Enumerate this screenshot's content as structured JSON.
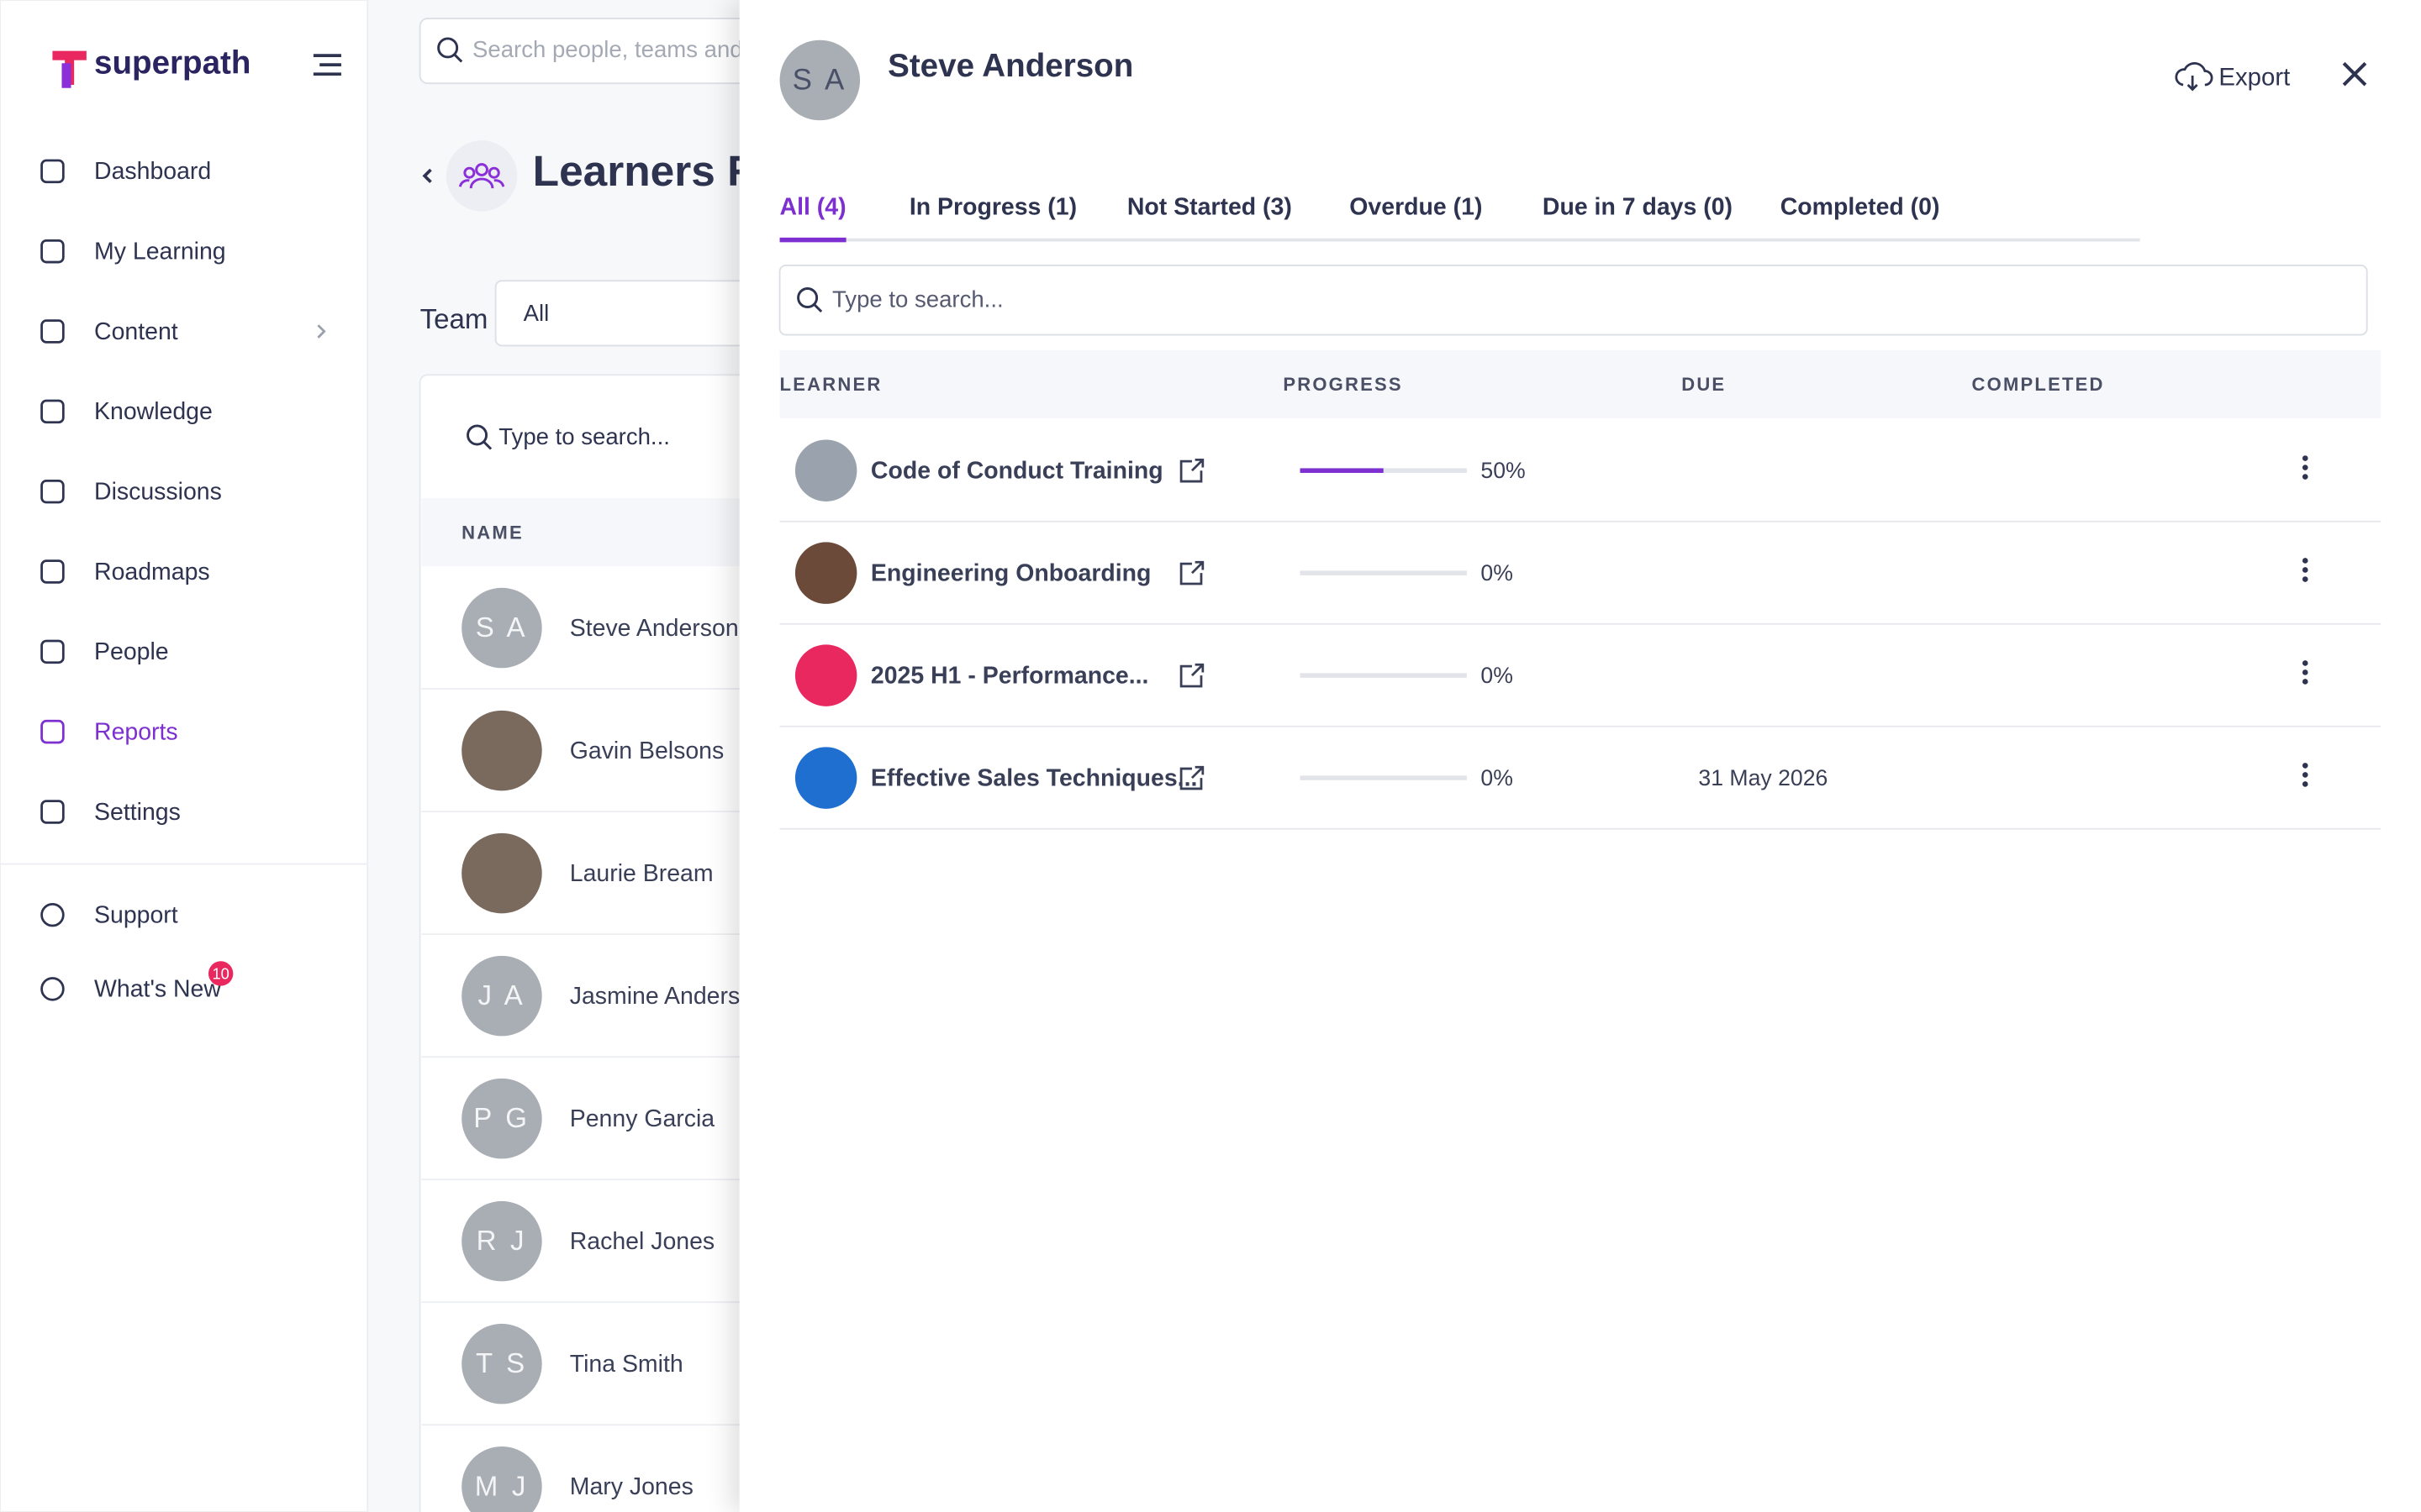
{
  "sidebar": {
    "brand": "superpath",
    "nav": [
      "Dashboard",
      "My Learning",
      "Content",
      "Knowledge",
      "Discussions",
      "Roadmaps",
      "People",
      "Reports",
      "Settings"
    ],
    "active": 7,
    "footer": [
      "Support",
      "What's New"
    ],
    "badge": "10"
  },
  "page": {
    "search": "Search people, teams and l",
    "title": "Learners R",
    "filter_label": "Team",
    "filter_value": "All",
    "table_search": "Type to search...",
    "column": "NAME",
    "people": [
      {
        "initials": "S A",
        "name": "Steve Anderson"
      },
      {
        "name": "Gavin Belsons"
      },
      {
        "name": "Laurie Bream"
      },
      {
        "initials": "J A",
        "name": "Jasmine Anderso"
      },
      {
        "initials": "P G",
        "name": "Penny Garcia"
      },
      {
        "initials": "R J",
        "name": "Rachel Jones"
      },
      {
        "initials": "T S",
        "name": "Tina Smith"
      },
      {
        "initials": "M J",
        "name": "Mary Jones"
      }
    ]
  },
  "panel": {
    "initials": "S A",
    "name": "Steve Anderson",
    "export": "Export",
    "tabs": [
      "All (4)",
      "In Progress (1)",
      "Not Started (3)",
      "Overdue (1)",
      "Due in 7 days (0)",
      "Completed (0)"
    ],
    "active_tab": 0,
    "search": "Type to search...",
    "columns": [
      "LEARNER",
      "PROGRESS",
      "DUE",
      "COMPLETED"
    ],
    "rows": [
      {
        "title": "Code of Conduct Training",
        "progress": 50,
        "progress_label": "50%",
        "color": "#9aa3ad"
      },
      {
        "title": "Engineering Onboarding",
        "progress": 0,
        "progress_label": "0%",
        "color": "#6b4a3a"
      },
      {
        "title": "2025 H1 - Performance...",
        "progress": 0,
        "progress_label": "0%",
        "color": "#e9285f"
      },
      {
        "title": "Effective Sales Techniques...",
        "progress": 0,
        "progress_label": "0%",
        "due": "31 May 2026",
        "color": "#1f6fd1"
      }
    ]
  }
}
